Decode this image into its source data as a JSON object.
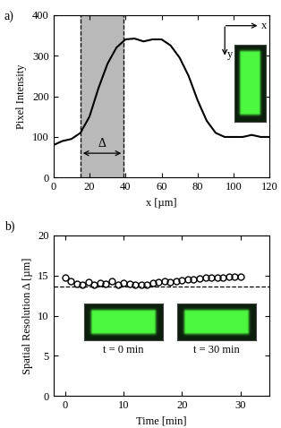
{
  "chart_data": [
    {
      "type": "line",
      "panel_label": "a)",
      "x_label": "x [µm]",
      "y_label": "Pixel Intensity",
      "color": "#000000",
      "line_style": "solid",
      "x": [
        0,
        5,
        10,
        15,
        20,
        25,
        30,
        35,
        40,
        45,
        50,
        55,
        60,
        65,
        70,
        75,
        80,
        85,
        90,
        95,
        100,
        105,
        110,
        115,
        120
      ],
      "values": [
        80,
        90,
        95,
        110,
        150,
        220,
        280,
        320,
        340,
        342,
        335,
        340,
        340,
        325,
        295,
        250,
        190,
        140,
        110,
        100,
        100,
        100,
        105,
        100,
        100
      ],
      "xlim": [
        0,
        120
      ],
      "xticks": [
        0,
        20,
        40,
        60,
        80,
        100,
        120
      ],
      "ylim": [
        0,
        400
      ],
      "yticks": [
        0,
        100,
        200,
        300,
        400
      ],
      "band": [
        15,
        39
      ],
      "band_label": "Δ",
      "inset_axis_labels": [
        "x",
        "y"
      ]
    },
    {
      "type": "scatter",
      "panel_label": "b)",
      "x_label": "Time [min]",
      "y_label": "Spatial Resolution Δ [µm]",
      "color": "#000000",
      "marker": "o",
      "x": [
        0,
        1,
        2,
        3,
        4,
        5,
        6,
        7,
        8,
        9,
        10,
        11,
        12,
        13,
        14,
        15,
        16,
        17,
        18,
        19,
        20,
        21,
        22,
        23,
        24,
        25,
        26,
        27,
        28,
        29,
        30
      ],
      "values": [
        14.7,
        14.3,
        14.0,
        13.8,
        14.2,
        13.9,
        14.1,
        14.0,
        14.3,
        13.9,
        14.1,
        14.0,
        13.9,
        13.8,
        13.9,
        14.1,
        14.2,
        14.3,
        14.2,
        14.3,
        14.4,
        14.5,
        14.5,
        14.6,
        14.7,
        14.7,
        14.8,
        14.8,
        14.9,
        14.9,
        14.9
      ],
      "xlim": [
        -2,
        35
      ],
      "xticks": [
        0,
        10,
        20,
        30
      ],
      "ylim": [
        0,
        20
      ],
      "yticks": [
        0,
        5,
        10,
        15,
        20
      ],
      "reference_line": 13.6,
      "inset_labels": [
        "t = 0 min",
        "t = 30 min"
      ]
    }
  ]
}
